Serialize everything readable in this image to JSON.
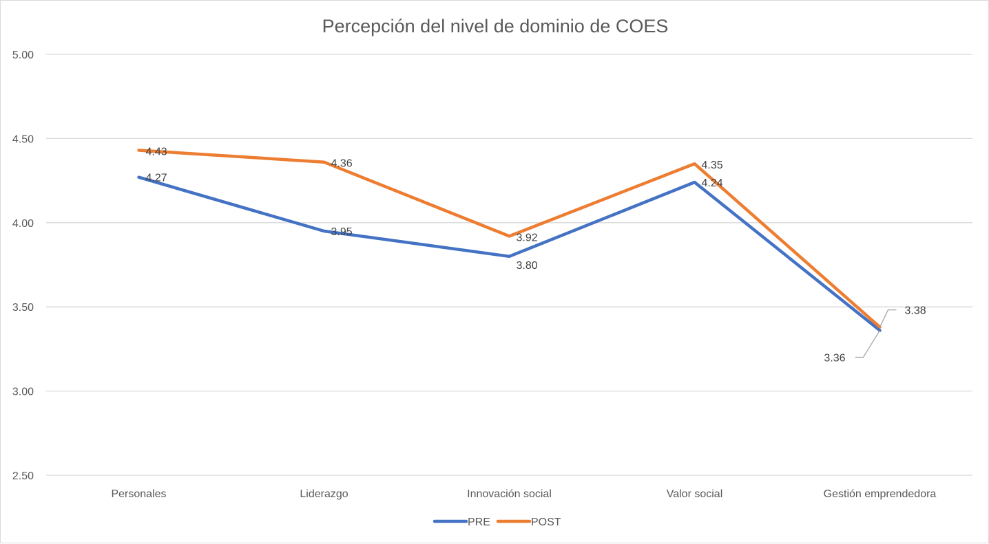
{
  "chart_data": {
    "type": "line",
    "title": "Percepción del nivel de dominio de COES",
    "categories": [
      "Personales",
      "Liderazgo",
      "Innovación social",
      "Valor social",
      "Gestión emprendedora"
    ],
    "ylim": [
      2.5,
      5.0
    ],
    "yticks": [
      2.5,
      3.0,
      3.5,
      4.0,
      4.5,
      5.0
    ],
    "ytick_labels": [
      "2.50",
      "3.00",
      "3.50",
      "4.00",
      "4.50",
      "5.00"
    ],
    "grid": true,
    "legend_position": "bottom",
    "series": [
      {
        "name": "PRE",
        "color": "#4472C4",
        "values": [
          4.27,
          3.95,
          3.8,
          4.24,
          3.36
        ],
        "labels": [
          "4.27",
          "3.95",
          "3.80",
          "4.24",
          "3.36"
        ]
      },
      {
        "name": "POST",
        "color": "#ED7D31",
        "values": [
          4.43,
          4.36,
          3.92,
          4.35,
          3.38
        ],
        "labels": [
          "4.43",
          "4.36",
          "3.92",
          "4.35",
          "3.38"
        ]
      }
    ]
  }
}
